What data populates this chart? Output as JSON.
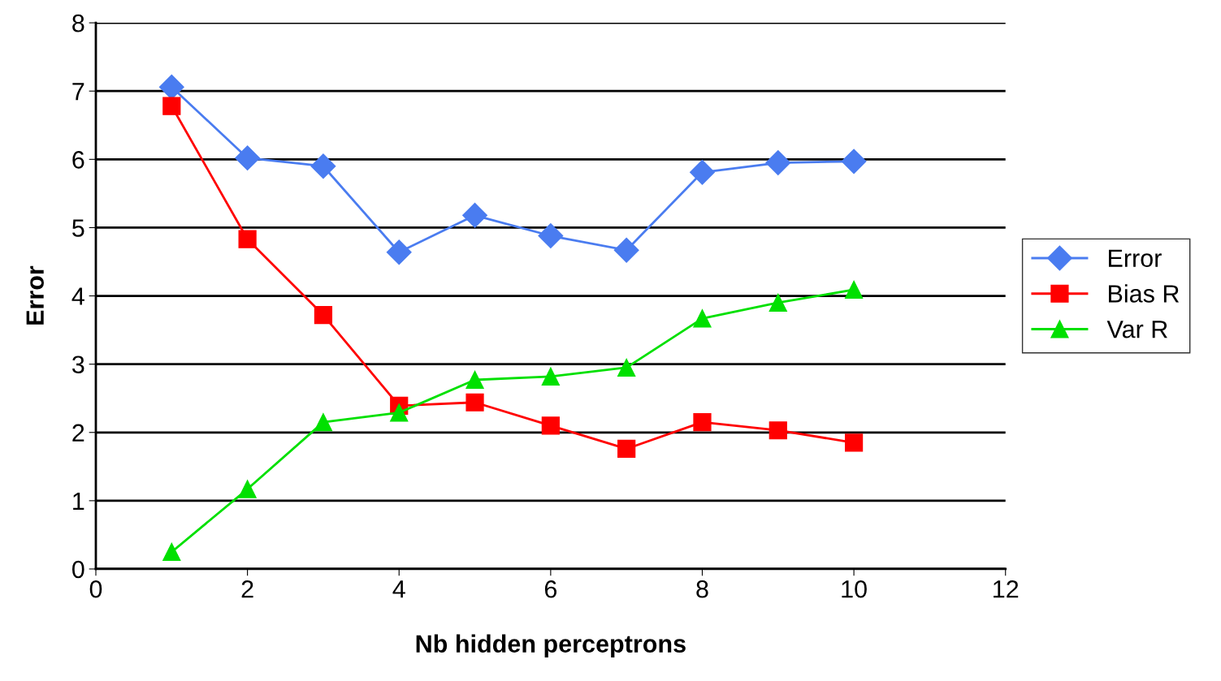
{
  "chart_data": {
    "type": "line",
    "xlabel": "Nb hidden perceptrons",
    "ylabel": "Error",
    "x": [
      1,
      2,
      3,
      4,
      5,
      6,
      7,
      8,
      9,
      10
    ],
    "series": [
      {
        "name": "Error",
        "color": "#4a7cf0",
        "marker": "diamond",
        "values": [
          7.06,
          6.02,
          5.9,
          4.64,
          5.18,
          4.88,
          4.67,
          5.81,
          5.95,
          5.97
        ]
      },
      {
        "name": "Bias R",
        "color": "#ff0000",
        "marker": "square",
        "values": [
          6.78,
          4.83,
          3.72,
          2.39,
          2.44,
          2.1,
          1.76,
          2.15,
          2.03,
          1.85
        ]
      },
      {
        "name": "Var R",
        "color": "#00e000",
        "marker": "triangle",
        "values": [
          0.25,
          1.17,
          2.15,
          2.29,
          2.77,
          2.82,
          2.95,
          3.67,
          3.9,
          4.09
        ]
      }
    ],
    "xlim": [
      0,
      12
    ],
    "xticks": [
      0,
      2,
      4,
      6,
      8,
      10,
      12
    ],
    "ylim": [
      0,
      8
    ],
    "yticks": [
      0,
      1,
      2,
      3,
      4,
      5,
      6,
      7,
      8
    ],
    "grid": "y",
    "legend": "right",
    "line_style": "solid"
  }
}
